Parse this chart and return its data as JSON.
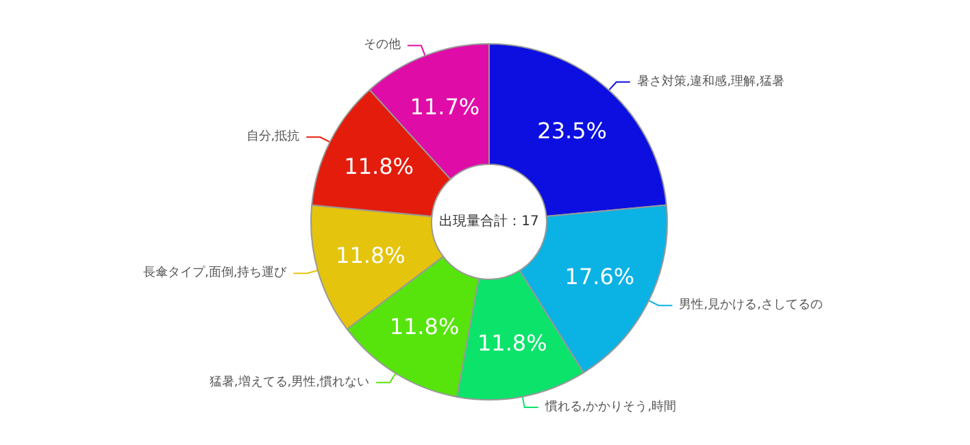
{
  "chart_data": {
    "type": "donut",
    "categories": [
      "暑さ対策,違和感,理解,猛暑",
      "男性,見かける,さしてるの",
      "慣れる,かかりそう,時間",
      "猛暑,増えてる,男性,慣れない",
      "長傘タイプ,面倒,持ち運び",
      "自分,抵抗",
      "その他"
    ],
    "values": [
      23.5,
      17.6,
      11.8,
      11.8,
      11.8,
      11.8,
      11.7
    ],
    "value_labels": [
      "23.5%",
      "17.6%",
      "11.8%",
      "11.8%",
      "11.8%",
      "11.8%",
      "11.7%"
    ],
    "colors": [
      "#0c0fe0",
      "#0bb2e4",
      "#0be36b",
      "#56e40c",
      "#e4c40c",
      "#e41c0c",
      "#e00ca8"
    ],
    "annotations": [
      "出現量合計：17"
    ],
    "legend": false
  }
}
